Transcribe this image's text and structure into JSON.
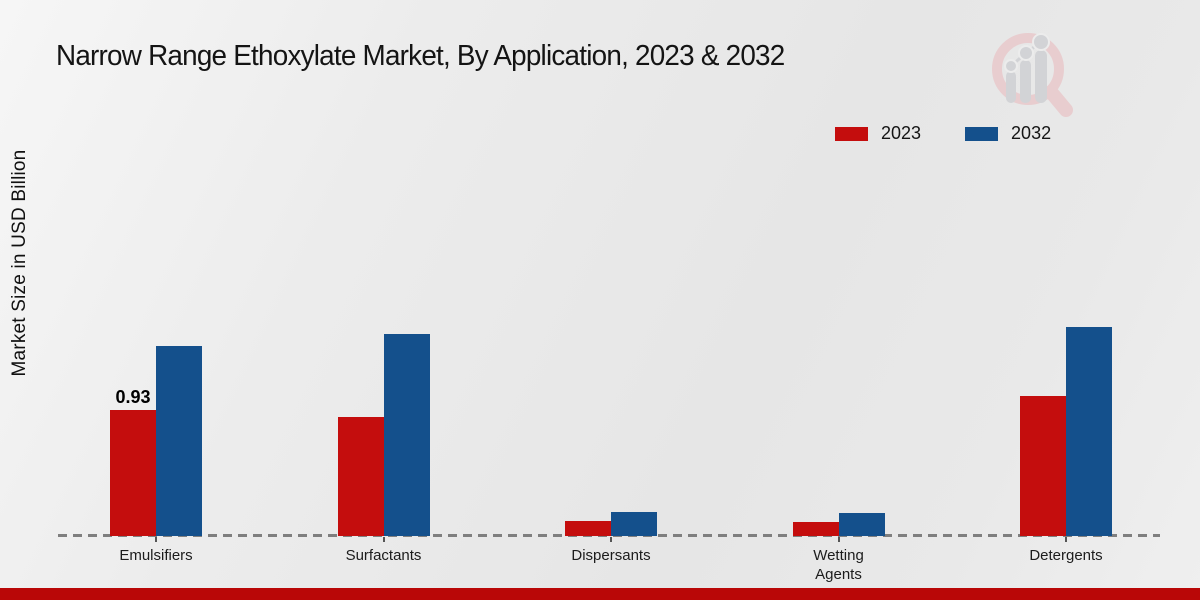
{
  "title": "Narrow Range Ethoxylate Market, By Application, 2023 & 2032",
  "y_axis_label": "Market Size in USD Billion",
  "legend": {
    "position": "top-right",
    "items": [
      {
        "label": "2023",
        "color": "#c40d0d"
      },
      {
        "label": "2032",
        "color": "#14508c"
      }
    ]
  },
  "watermark_icon": "bar-chart-magnifier-logo",
  "colors": {
    "series_2023": "#c40d0d",
    "series_2032": "#14508c",
    "baseline_dash": "#7f7f7f",
    "bottom_strip": "#b90707",
    "background": "#ebebeb"
  },
  "chart_data": {
    "type": "bar",
    "title": "Narrow Range Ethoxylate Market, By Application, 2023 & 2032",
    "xlabel": "",
    "ylabel": "Market Size in USD Billion",
    "categories": [
      "Emulsifiers",
      "Surfactants",
      "Dispersants",
      "Wetting Agents",
      "Detergents"
    ],
    "series": [
      {
        "name": "2023",
        "color": "#c40d0d",
        "values": [
          0.93,
          0.88,
          0.11,
          0.1,
          1.03
        ]
      },
      {
        "name": "2032",
        "color": "#14508c",
        "values": [
          1.4,
          1.49,
          0.18,
          0.17,
          1.54
        ]
      }
    ],
    "data_labels": [
      {
        "category": "Emulsifiers",
        "series": "2023",
        "text": "0.93"
      }
    ],
    "ylim": [
      0,
      1.7
    ],
    "grid": false,
    "baseline_style": "dashed",
    "legend_position": "top-right"
  }
}
